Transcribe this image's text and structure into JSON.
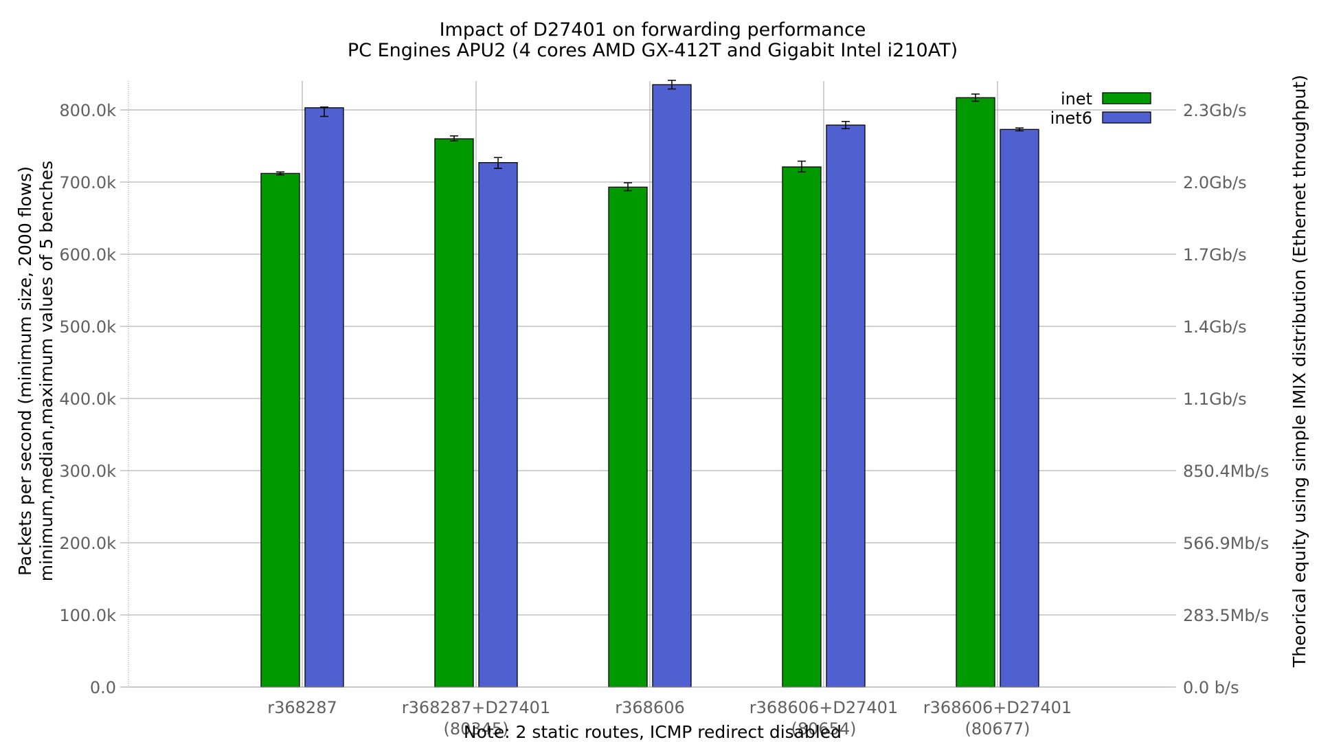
{
  "chart_data": {
    "type": "bar",
    "title": "Impact of D27401 on forwarding performance",
    "subtitle": "PC Engines APU2 (4 cores AMD GX-412T and Gigabit Intel i210AT)",
    "ylabel_line1": "Packets per second (minimum size, 2000 flows)",
    "ylabel_line2": "minimum,median,maximum values of 5 benches",
    "y2label": "Theorical equity using simple IMIX distribution (Ethernet throughput)",
    "note": "Note: 2 static routes, ICMP redirect disabled",
    "ylim": [
      0,
      840000
    ],
    "yticks": [
      {
        "value": 0,
        "label": "0.0"
      },
      {
        "value": 100000,
        "label": "100.0k"
      },
      {
        "value": 200000,
        "label": "200.0k"
      },
      {
        "value": 300000,
        "label": "300.0k"
      },
      {
        "value": 400000,
        "label": "400.0k"
      },
      {
        "value": 500000,
        "label": "500.0k"
      },
      {
        "value": 600000,
        "label": "600.0k"
      },
      {
        "value": 700000,
        "label": "700.0k"
      },
      {
        "value": 800000,
        "label": "800.0k"
      }
    ],
    "y2ticks": [
      {
        "value": 0,
        "label": "0.0 b/s"
      },
      {
        "value": 100000,
        "label": "283.5Mb/s"
      },
      {
        "value": 200000,
        "label": "566.9Mb/s"
      },
      {
        "value": 300000,
        "label": "850.4Mb/s"
      },
      {
        "value": 400000,
        "label": "1.1Gb/s"
      },
      {
        "value": 500000,
        "label": "1.4Gb/s"
      },
      {
        "value": 600000,
        "label": "1.7Gb/s"
      },
      {
        "value": 700000,
        "label": "2.0Gb/s"
      },
      {
        "value": 800000,
        "label": "2.3Gb/s"
      }
    ],
    "categories": [
      [
        "r368287"
      ],
      [
        "r368287+D27401",
        "(80345)"
      ],
      [
        "r368606"
      ],
      [
        "r368606+D27401",
        "(80654)"
      ],
      [
        "r368606+D27401",
        "(80677)"
      ]
    ],
    "legend_position": "top-right",
    "grid": true,
    "series": [
      {
        "name": "inet",
        "color": "#009900",
        "values": [
          712000,
          760000,
          693000,
          721000,
          817000
        ],
        "min": [
          710000,
          757000,
          688000,
          714000,
          812000
        ],
        "max": [
          714000,
          764000,
          699000,
          729000,
          822000
        ]
      },
      {
        "name": "inet6",
        "color": "#5060D0",
        "values": [
          803000,
          727000,
          835000,
          779000,
          773000
        ],
        "min": [
          791000,
          719000,
          829000,
          774000,
          771000
        ],
        "max": [
          804000,
          734000,
          841000,
          784000,
          775000
        ]
      }
    ]
  }
}
